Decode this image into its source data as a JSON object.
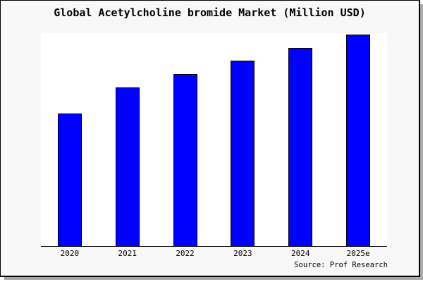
{
  "title": "Global Acetylcholine bromide Market (Million USD)",
  "source_credit": "Source: Prof Research",
  "colors": {
    "bar_fill": "#0000ff",
    "bar_edge": "#000000",
    "canvas_bg": "#f8f8f8",
    "plot_bg": "#ffffff",
    "axis": "#000000",
    "border": "#000000",
    "shadow": "#aaaaaa"
  },
  "chart_data": {
    "type": "bar",
    "title": "Global Acetylcholine bromide Market (Million USD)",
    "categories": [
      "2020",
      "2021",
      "2022",
      "2023",
      "2024",
      "2025e"
    ],
    "values": [
      62.7,
      75.0,
      81.5,
      87.7,
      93.7,
      100.0
    ],
    "value_note": "y-axis has no tick labels; values are relative estimates with 2025e = 100",
    "xlabel": "",
    "ylabel": "",
    "ylim": [
      0,
      100.7
    ],
    "grid": false,
    "legend": false,
    "annotations": [
      "Source: Prof Research"
    ]
  }
}
